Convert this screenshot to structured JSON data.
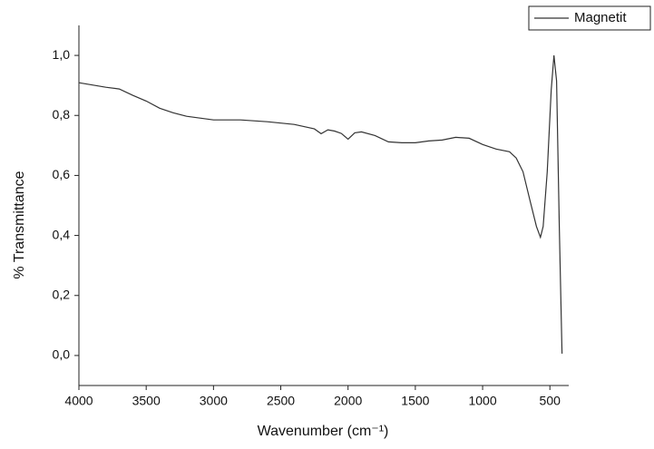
{
  "chart_data": {
    "type": "line",
    "x_label": "Wavenumber (cm⁻¹)",
    "y_label": "% Transmittance",
    "xlim": [
      4000,
      360
    ],
    "ylim": [
      -0.1,
      1.1
    ],
    "xticks": [
      4000,
      3500,
      3000,
      2500,
      2000,
      1500,
      1000,
      500
    ],
    "yticks": [
      {
        "value": 0,
        "label": "0,0"
      },
      {
        "value": 0.2,
        "label": "0,2"
      },
      {
        "value": 0.4,
        "label": "0,4"
      },
      {
        "value": 0.6,
        "label": "0,6"
      },
      {
        "value": 0.8,
        "label": "0,8"
      },
      {
        "value": 1.0,
        "label": "1,0"
      }
    ],
    "legend": "top-right",
    "series": [
      {
        "name": "Magnetit",
        "color": "#333333",
        "x": [
          4000,
          3800,
          3700,
          3600,
          3500,
          3400,
          3300,
          3200,
          3000,
          2800,
          2600,
          2400,
          2250,
          2200,
          2150,
          2100,
          2050,
          2000,
          1950,
          1900,
          1800,
          1700,
          1600,
          1500,
          1400,
          1300,
          1200,
          1100,
          1000,
          900,
          800,
          750,
          700,
          650,
          600,
          570,
          550,
          520,
          490,
          470,
          450,
          430,
          410
        ],
        "values": [
          0.909,
          0.894,
          0.888,
          0.867,
          0.848,
          0.824,
          0.809,
          0.797,
          0.785,
          0.785,
          0.779,
          0.77,
          0.755,
          0.739,
          0.752,
          0.748,
          0.74,
          0.721,
          0.742,
          0.745,
          0.733,
          0.712,
          0.709,
          0.709,
          0.715,
          0.718,
          0.727,
          0.724,
          0.703,
          0.688,
          0.679,
          0.658,
          0.612,
          0.52,
          0.43,
          0.394,
          0.43,
          0.612,
          0.885,
          1.0,
          0.915,
          0.43,
          0.006
        ]
      }
    ]
  }
}
